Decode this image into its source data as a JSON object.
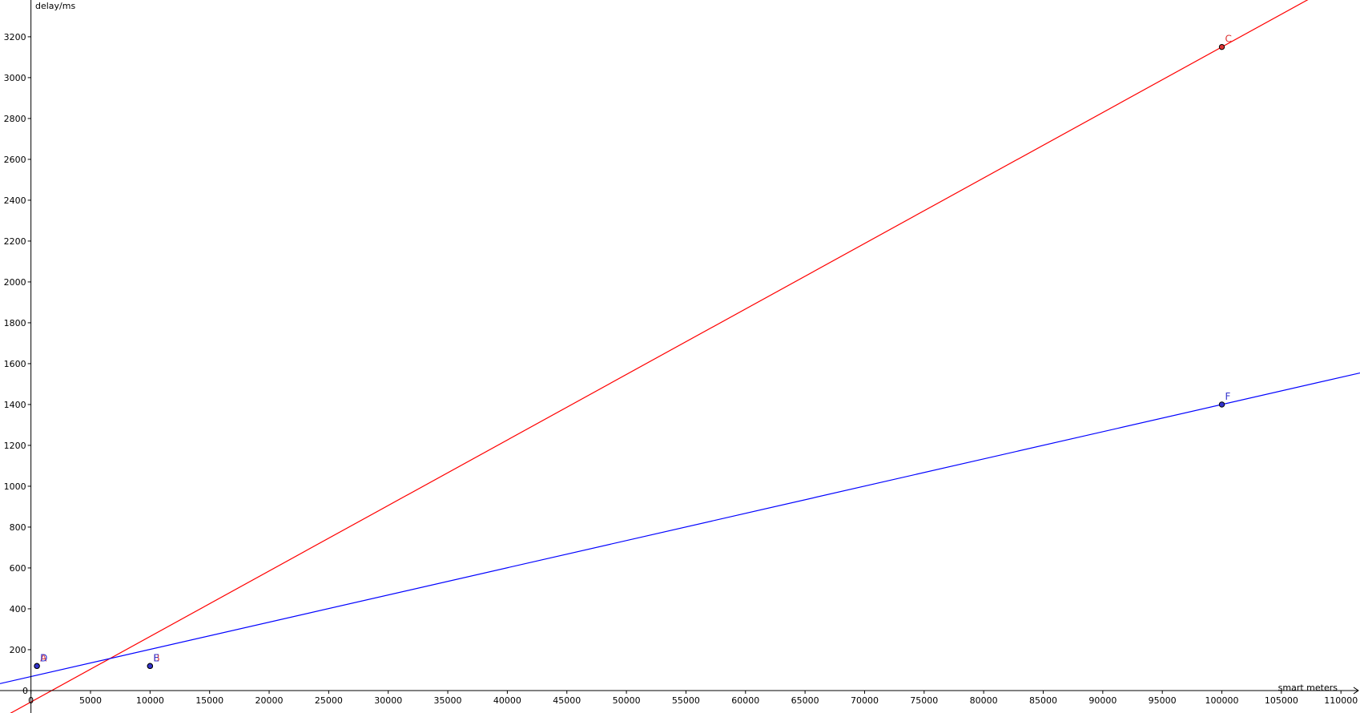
{
  "chart_data": {
    "type": "scatter",
    "xlabel": "smart meters",
    "ylabel": "delay/ms",
    "origin_label": "0",
    "xlim": [
      -2600,
      111600
    ],
    "ylim": [
      -110,
      3380
    ],
    "x_ticks": [
      0,
      5000,
      10000,
      15000,
      20000,
      25000,
      30000,
      35000,
      40000,
      45000,
      50000,
      55000,
      60000,
      65000,
      70000,
      75000,
      80000,
      85000,
      90000,
      95000,
      100000,
      105000,
      110000
    ],
    "y_ticks": [
      200,
      400,
      600,
      800,
      1000,
      1200,
      1400,
      1600,
      1800,
      2000,
      2200,
      2400,
      2600,
      2800,
      3000,
      3200
    ],
    "grid": false,
    "points": [
      {
        "label": "A",
        "x": 500,
        "y": 120,
        "color": "#dd3333"
      },
      {
        "label": "B",
        "x": 10000,
        "y": 120,
        "color": "#dd3333"
      },
      {
        "label": "C",
        "x": 100000,
        "y": 3150,
        "color": "#dd3333"
      },
      {
        "label": "D",
        "x": 500,
        "y": 120,
        "color": "#3333cc"
      },
      {
        "label": "E",
        "x": 10000,
        "y": 120,
        "color": "#3333cc"
      },
      {
        "label": "F",
        "x": 100000,
        "y": 1400,
        "color": "#3333cc"
      }
    ],
    "series": [
      {
        "x": [
          500,
          100000
        ],
        "y": [
          -40,
          3150
        ],
        "color": "#ff0000"
      },
      {
        "x": [
          500,
          100000
        ],
        "y": [
          75,
          1400
        ],
        "color": "#0000ff"
      }
    ]
  }
}
